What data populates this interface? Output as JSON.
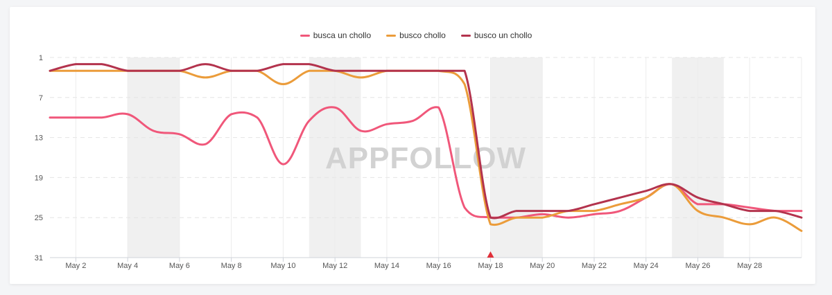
{
  "watermark": "APPFOLLOW",
  "chart_data": {
    "type": "line",
    "x": [
      "May 1",
      "May 2",
      "May 3",
      "May 4",
      "May 5",
      "May 6",
      "May 7",
      "May 8",
      "May 9",
      "May 10",
      "May 11",
      "May 12",
      "May 13",
      "May 14",
      "May 15",
      "May 16",
      "May 17",
      "May 18",
      "May 19",
      "May 20",
      "May 21",
      "May 22",
      "May 23",
      "May 24",
      "May 25",
      "May 26",
      "May 27",
      "May 28",
      "May 29",
      "May 30"
    ],
    "x_tick_labels": [
      "May 2",
      "May 4",
      "May 6",
      "May 8",
      "May 10",
      "May 12",
      "May 14",
      "May 16",
      "May 18",
      "May 20",
      "May 22",
      "May 24",
      "May 26",
      "May 28"
    ],
    "y_tick_labels": [
      "1",
      "7",
      "13",
      "19",
      "25",
      "31"
    ],
    "ylim": [
      1,
      31
    ],
    "y_inverted": true,
    "grid": "dashed horizontal, solid vertical",
    "legend_position": "top-center",
    "shaded_periods": [
      [
        "May 4",
        "May 6"
      ],
      [
        "May 11",
        "May 13"
      ],
      [
        "May 18",
        "May 20"
      ],
      [
        "May 25",
        "May 27"
      ]
    ],
    "marker": {
      "x": "May 18",
      "shape": "triangle",
      "color": "#e0303a"
    },
    "series": [
      {
        "name": "busca un chollo",
        "color": "#f0577a",
        "values": [
          10,
          10,
          10,
          9.5,
          12,
          12.5,
          14,
          9.5,
          10,
          17,
          10.5,
          8.5,
          12,
          11,
          10.5,
          8.5,
          23.5,
          25,
          25,
          24.5,
          25,
          24.5,
          24,
          22,
          20,
          23,
          23,
          23.5,
          24,
          24
        ]
      },
      {
        "name": "busco chollo",
        "color": "#eb9c3a",
        "values": [
          3,
          3,
          3,
          3,
          3,
          3,
          4,
          3,
          3,
          5,
          3,
          3,
          4,
          3,
          3,
          3,
          5,
          26,
          25,
          25,
          24,
          24,
          23,
          22,
          20,
          24,
          25,
          26,
          25,
          27
        ]
      },
      {
        "name": "busco un chollo",
        "color": "#b3334d",
        "values": [
          3,
          2,
          2,
          3,
          3,
          3,
          2,
          3,
          3,
          2,
          2,
          3,
          3,
          3,
          3,
          3,
          3,
          25,
          24,
          24,
          24,
          23,
          22,
          21,
          20,
          22,
          23,
          24,
          24,
          25
        ]
      }
    ]
  }
}
